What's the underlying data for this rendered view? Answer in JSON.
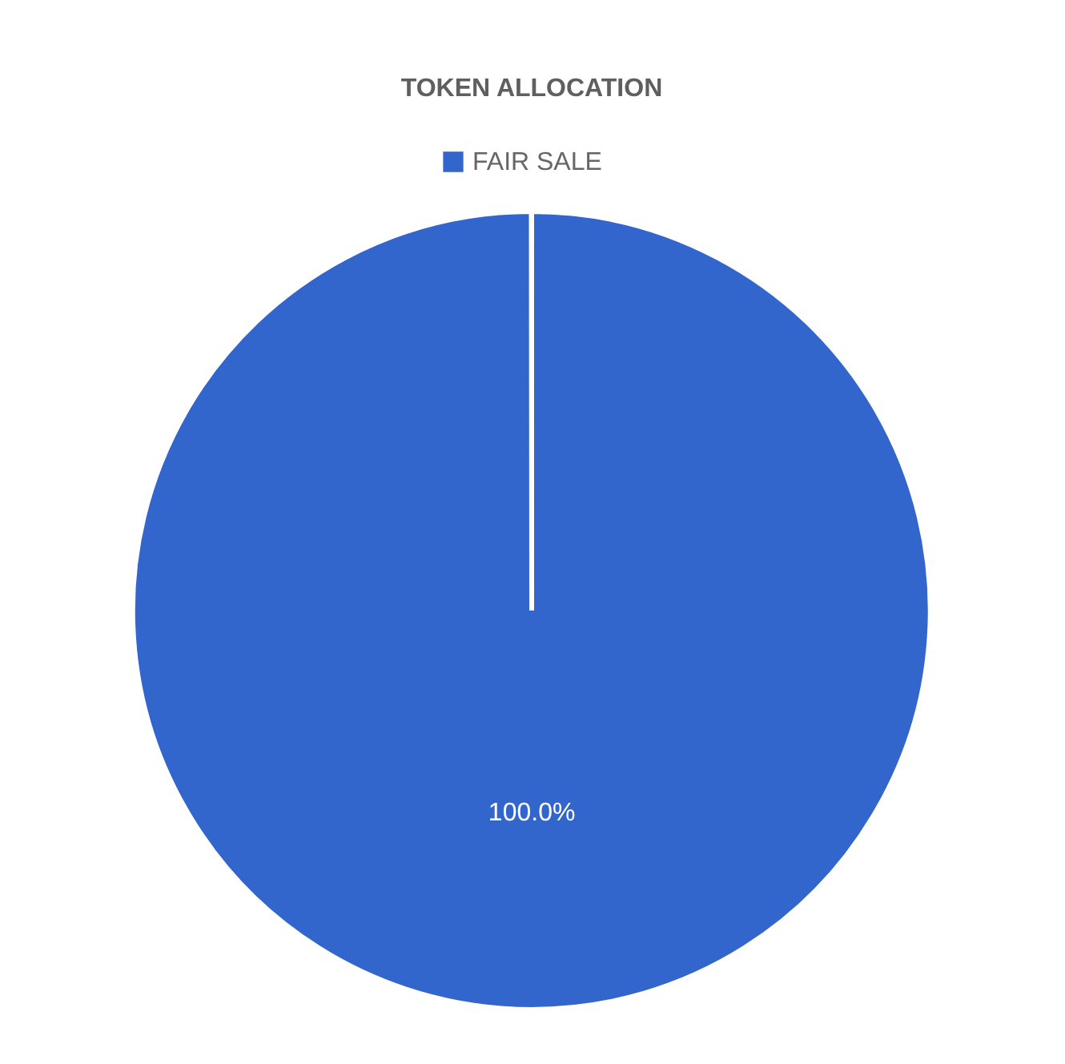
{
  "chart_data": {
    "type": "pie",
    "title": "TOKEN ALLOCATION",
    "categories": [
      "FAIR SALE"
    ],
    "values": [
      100
    ],
    "colors": [
      "#3366cc"
    ],
    "value_labels": [
      "100.0%"
    ],
    "legend": "top"
  }
}
